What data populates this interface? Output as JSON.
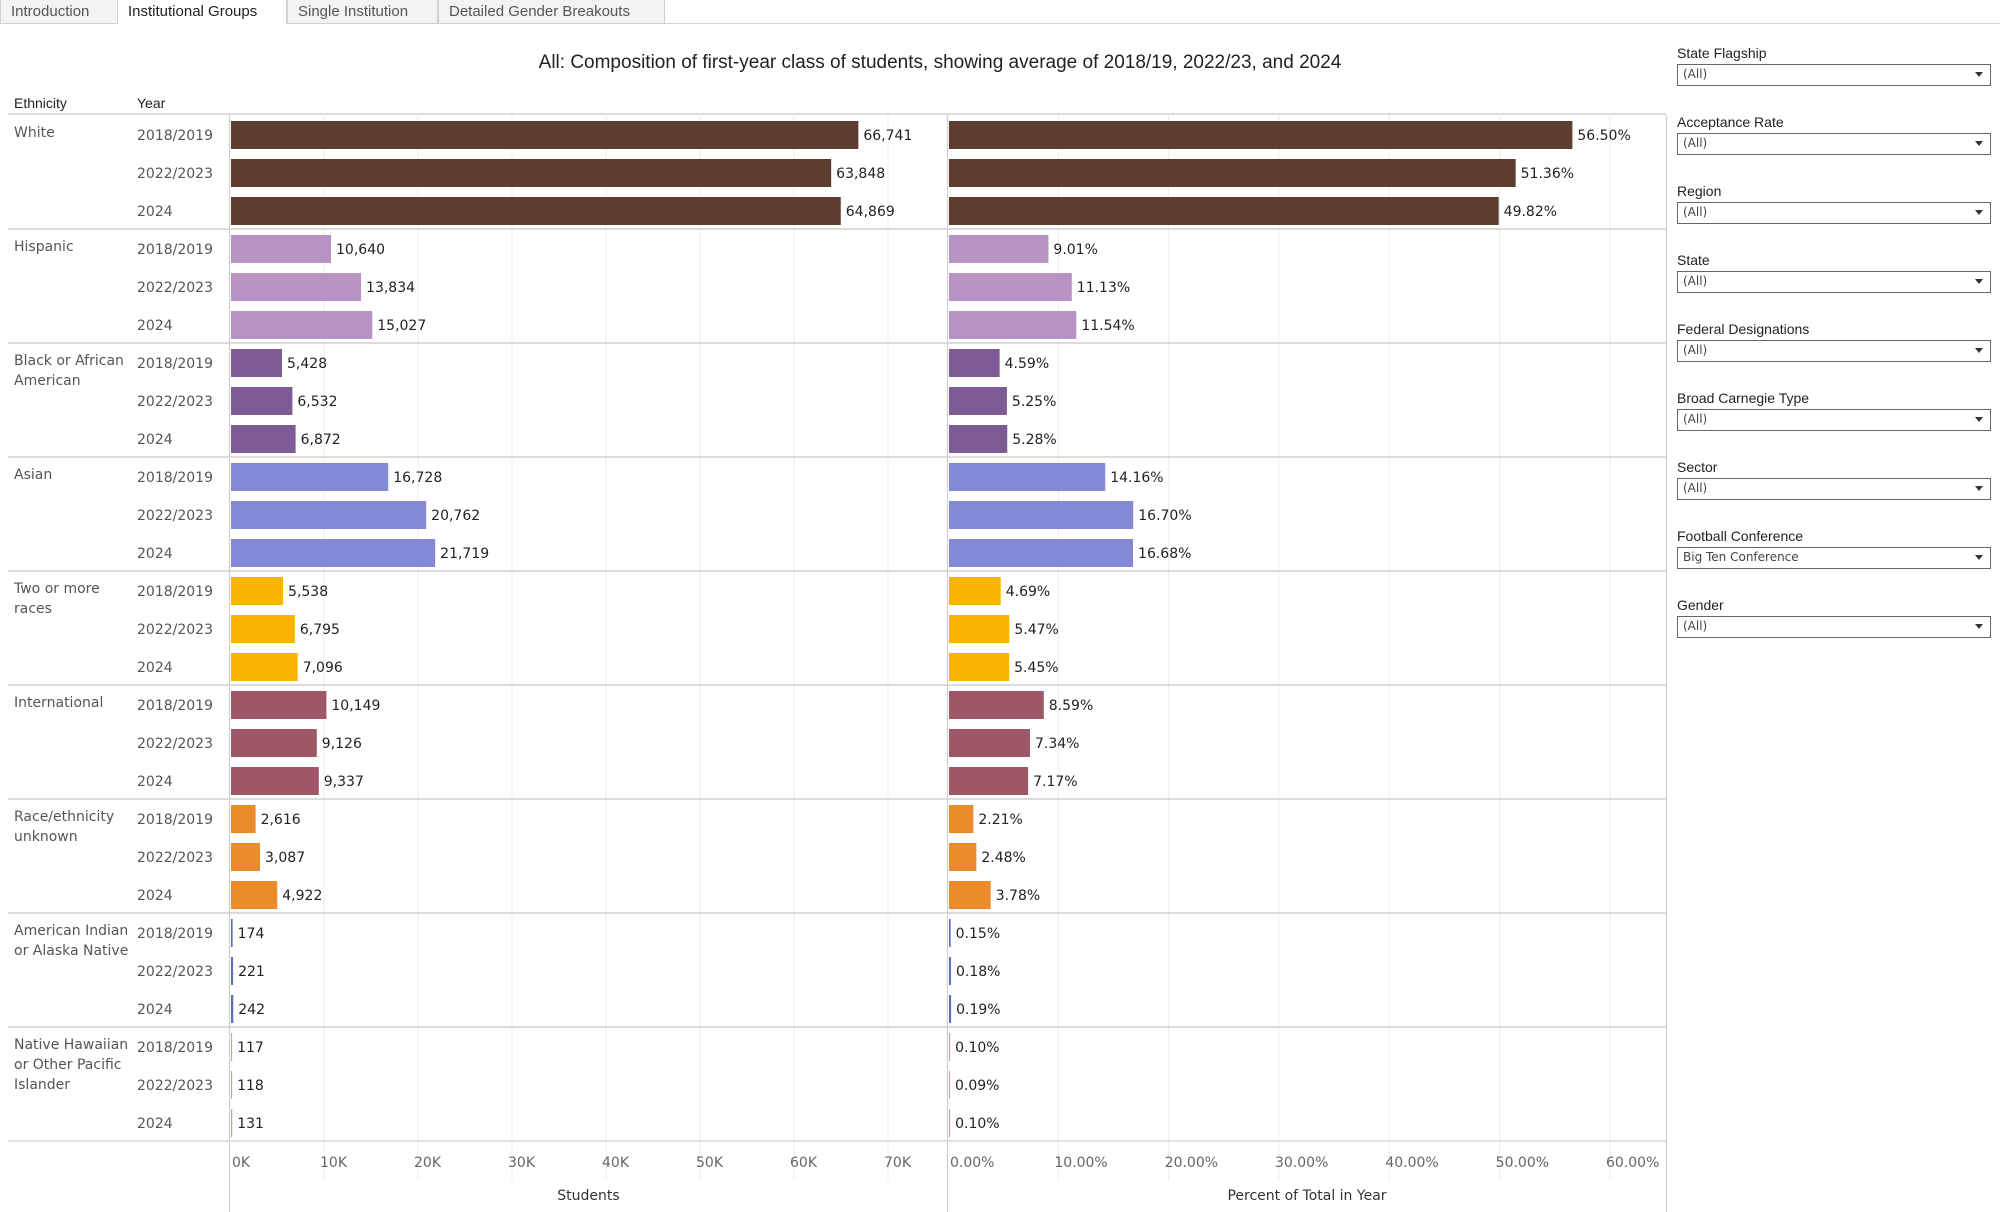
{
  "tabs": [
    {
      "label": "Introduction",
      "active": false
    },
    {
      "label": "Institutional Groups",
      "active": true
    },
    {
      "label": "Single Institution",
      "active": false
    },
    {
      "label": "Detailed Gender Breakouts",
      "active": false
    }
  ],
  "headers": {
    "ethnicity": "Ethnicity",
    "year": "Year"
  },
  "filters": [
    {
      "label": "State Flagship",
      "value": "(All)"
    },
    {
      "label": "Acceptance Rate",
      "value": "(All)"
    },
    {
      "label": "Region",
      "value": "(All)"
    },
    {
      "label": "State",
      "value": "(All)"
    },
    {
      "label": "Federal Designations",
      "value": "(All)"
    },
    {
      "label": "Broad Carnegie Type",
      "value": "(All)"
    },
    {
      "label": "Sector",
      "value": "(All)"
    },
    {
      "label": "Football Conference",
      "value": "Big Ten Conference"
    },
    {
      "label": "Gender",
      "value": "(All)"
    }
  ],
  "chart_data": {
    "type": "bar",
    "orientation": "horizontal",
    "title": "All: Composition of first-year class of students, showing average of 2018/19, 2022/23, and 2024",
    "row_dimensions": [
      "Ethnicity",
      "Year"
    ],
    "years": [
      "2018/2019",
      "2022/2023",
      "2024"
    ],
    "grid": true,
    "panels": [
      {
        "name": "students",
        "xlabel": "Students",
        "xlim": [
          0,
          77000
        ],
        "ticks": [
          0,
          10000,
          20000,
          30000,
          40000,
          50000,
          60000,
          70000
        ],
        "tick_labels": [
          "0K",
          "10K",
          "20K",
          "30K",
          "40K",
          "50K",
          "60K",
          "70K"
        ]
      },
      {
        "name": "percent",
        "xlabel": "Percent of Total in Year",
        "xlim": [
          0,
          65
        ],
        "ticks": [
          0,
          10,
          20,
          30,
          40,
          50,
          60
        ],
        "tick_labels": [
          "0.00%",
          "10.00%",
          "20.00%",
          "30.00%",
          "40.00%",
          "50.00%",
          "60.00%"
        ]
      }
    ],
    "groups": [
      {
        "ethnicity": "White",
        "label_lines": [
          "White"
        ],
        "color": "#5d3d30",
        "students": [
          66741,
          63848,
          64869
        ],
        "students_labels": [
          "66,741",
          "63,848",
          "64,869"
        ],
        "percent": [
          56.5,
          51.36,
          49.82
        ],
        "percent_labels": [
          "56.50%",
          "51.36%",
          "49.82%"
        ]
      },
      {
        "ethnicity": "Hispanic",
        "label_lines": [
          "Hispanic"
        ],
        "color": "#b792c2",
        "students": [
          10640,
          13834,
          15027
        ],
        "students_labels": [
          "10,640",
          "13,834",
          "15,027"
        ],
        "percent": [
          9.01,
          11.13,
          11.54
        ],
        "percent_labels": [
          "9.01%",
          "11.13%",
          "11.54%"
        ]
      },
      {
        "ethnicity": "Black or African American",
        "label_lines": [
          "Black or African",
          "American"
        ],
        "color": "#7d5b94",
        "students": [
          5428,
          6532,
          6872
        ],
        "students_labels": [
          "5,428",
          "6,532",
          "6,872"
        ],
        "percent": [
          4.59,
          5.25,
          5.28
        ],
        "percent_labels": [
          "4.59%",
          "5.25%",
          "5.28%"
        ]
      },
      {
        "ethnicity": "Asian",
        "label_lines": [
          "Asian"
        ],
        "color": "#8489d5",
        "students": [
          16728,
          20762,
          21719
        ],
        "students_labels": [
          "16,728",
          "20,762",
          "21,719"
        ],
        "percent": [
          14.16,
          16.7,
          16.68
        ],
        "percent_labels": [
          "14.16%",
          "16.70%",
          "16.68%"
        ]
      },
      {
        "ethnicity": "Two or more races",
        "label_lines": [
          "Two or more",
          "races"
        ],
        "color": "#f9b400",
        "students": [
          5538,
          6795,
          7096
        ],
        "students_labels": [
          "5,538",
          "6,795",
          "7,096"
        ],
        "percent": [
          4.69,
          5.47,
          5.45
        ],
        "percent_labels": [
          "4.69%",
          "5.47%",
          "5.45%"
        ]
      },
      {
        "ethnicity": "International",
        "label_lines": [
          "International"
        ],
        "color": "#9e5766",
        "students": [
          10149,
          9126,
          9337
        ],
        "students_labels": [
          "10,149",
          "9,126",
          "9,337"
        ],
        "percent": [
          8.59,
          7.34,
          7.17
        ],
        "percent_labels": [
          "8.59%",
          "7.34%",
          "7.17%"
        ]
      },
      {
        "ethnicity": "Race/ethnicity unknown",
        "label_lines": [
          "Race/ethnicity",
          "unknown"
        ],
        "color": "#ec8b2c",
        "students": [
          2616,
          3087,
          4922
        ],
        "students_labels": [
          "2,616",
          "3,087",
          "4,922"
        ],
        "percent": [
          2.21,
          2.48,
          3.78
        ],
        "percent_labels": [
          "2.21%",
          "2.48%",
          "3.78%"
        ]
      },
      {
        "ethnicity": "American Indian or Alaska Native",
        "label_lines": [
          "American Indian",
          "or Alaska Native"
        ],
        "color": "#5b6fb3",
        "students": [
          174,
          221,
          242
        ],
        "students_labels": [
          "174",
          "221",
          "242"
        ],
        "percent": [
          0.15,
          0.18,
          0.19
        ],
        "percent_labels": [
          "0.15%",
          "0.18%",
          "0.19%"
        ]
      },
      {
        "ethnicity": "Native Hawaiian or Other Pacific Islander",
        "label_lines": [
          "Native Hawaiian",
          "or Other Pacific",
          "Islander"
        ],
        "color": "#c9a09a",
        "students": [
          117,
          118,
          131
        ],
        "students_labels": [
          "117",
          "118",
          "131"
        ],
        "percent": [
          0.1,
          0.09,
          0.1
        ],
        "percent_labels": [
          "0.10%",
          "0.09%",
          "0.10%"
        ]
      }
    ]
  }
}
